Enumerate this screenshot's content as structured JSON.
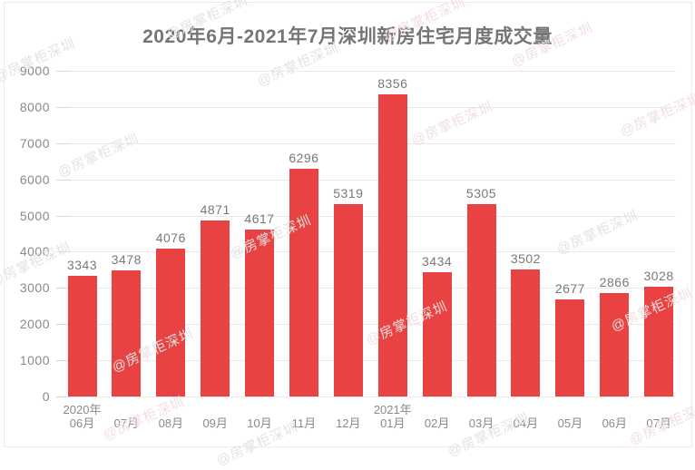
{
  "chart_data": {
    "type": "bar",
    "title": "2020年6月-2021年7月深圳新房住宅月度成交量",
    "categories": [
      [
        "2020年",
        "06月"
      ],
      [
        "",
        "07月"
      ],
      [
        "",
        "08月"
      ],
      [
        "",
        "09月"
      ],
      [
        "",
        "10月"
      ],
      [
        "",
        "11月"
      ],
      [
        "",
        "12月"
      ],
      [
        "2021年",
        "01月"
      ],
      [
        "",
        "02月"
      ],
      [
        "",
        "03月"
      ],
      [
        "",
        "04月"
      ],
      [
        "",
        "05月"
      ],
      [
        "",
        "06月"
      ],
      [
        "",
        "07月"
      ]
    ],
    "values": [
      3343,
      3478,
      4076,
      4871,
      4617,
      6296,
      5319,
      8356,
      3434,
      5305,
      3502,
      2677,
      2866,
      3028
    ],
    "ylim": [
      0,
      9000
    ],
    "yticks": [
      0,
      1000,
      2000,
      3000,
      4000,
      5000,
      6000,
      7000,
      8000,
      9000
    ],
    "xlabel": "",
    "ylabel": "",
    "grid": true,
    "legend": "none",
    "colors": {
      "bar": "#E84242",
      "title_text": "#757575",
      "axis_text": "#8A8A8A",
      "value_text": "#787878",
      "gridline": "#E9E9E9",
      "card_border": "#ECECEC",
      "watermark_gray": "#E4E2E2",
      "watermark_pink": "#F3DEDE"
    }
  },
  "watermark": {
    "text": "@房掌柜深圳"
  }
}
